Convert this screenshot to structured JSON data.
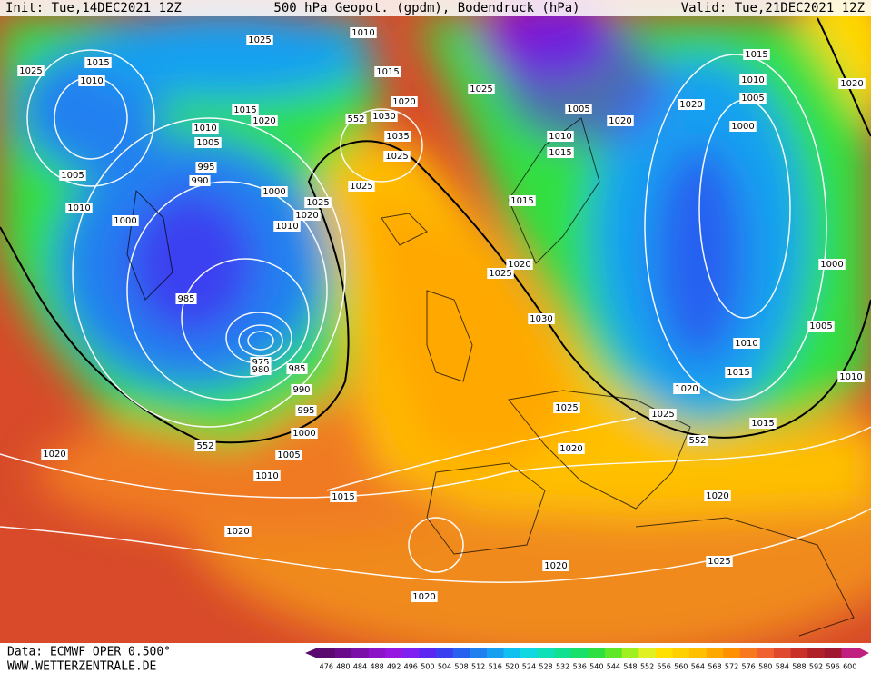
{
  "header": {
    "init": "Init: Tue,14DEC2021 12Z",
    "title": "500 hPa Geopot. (gpdm), Bodendruck (hPa)",
    "valid": "Valid: Tue,21DEC2021 12Z"
  },
  "isobar_labels": [
    "1025",
    "1010",
    "1025",
    "1015",
    "1010",
    "1015",
    "1020",
    "1025",
    "1015",
    "1020",
    "1030",
    "1010",
    "1005",
    "1035",
    "1025",
    "995",
    "990",
    "1005",
    "1025",
    "1000",
    "1025",
    "1020",
    "1010",
    "1000",
    "1010",
    "1025",
    "1020",
    "985",
    "1030",
    "975",
    "980",
    "985",
    "990",
    "995",
    "1000",
    "1005",
    "1010",
    "1015",
    "1020",
    "1020",
    "1020",
    "1020",
    "1025",
    "1020",
    "1025",
    "1020",
    "1015",
    "1010",
    "1005",
    "1000",
    "1000",
    "1005",
    "1010",
    "1015",
    "1020",
    "1020",
    "1005",
    "1010",
    "1015",
    "1015",
    "1015",
    "1010",
    "1020",
    "1025",
    "1020",
    "552",
    "552",
    "552"
  ],
  "colorbar": {
    "values": [
      476,
      480,
      484,
      488,
      492,
      496,
      500,
      504,
      508,
      512,
      516,
      520,
      524,
      528,
      532,
      536,
      540,
      544,
      548,
      552,
      556,
      560,
      564,
      568,
      572,
      576,
      580,
      584,
      588,
      592,
      596,
      600
    ],
    "colors": [
      "#5a0a6e",
      "#6a0c8a",
      "#7a10a8",
      "#8a14c6",
      "#9618e0",
      "#8020f0",
      "#5a28f0",
      "#3a40f0",
      "#2860f0",
      "#2080f0",
      "#18a0f0",
      "#10c0f0",
      "#10d8e0",
      "#10e0b8",
      "#10e090",
      "#18e068",
      "#30e040",
      "#60e828",
      "#a0f020",
      "#e0f020",
      "#ffe000",
      "#ffd000",
      "#ffc000",
      "#ffa800",
      "#ff9000",
      "#f87820",
      "#f06030",
      "#e04830",
      "#c83028",
      "#b02028",
      "#a01830",
      "#c02080"
    ]
  },
  "footer": {
    "data": "Data: ECMWF OPER 0.500°",
    "site": "WWW.WETTERZENTRALE.DE"
  }
}
